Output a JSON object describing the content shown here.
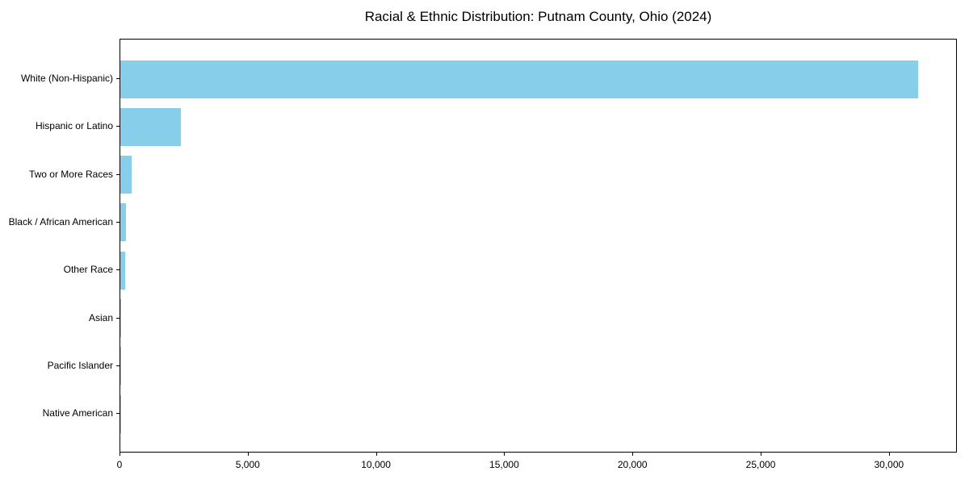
{
  "chart_data": {
    "type": "bar",
    "orientation": "horizontal",
    "title": "Racial & Ethnic Distribution: Putnam County, Ohio (2024)",
    "categories": [
      "White (Non-Hispanic)",
      "Hispanic or Latino",
      "Two or More Races",
      "Black / African American",
      "Other Race",
      "Asian",
      "Pacific Islander",
      "Native American"
    ],
    "values": [
      31100,
      2360,
      430,
      215,
      175,
      40,
      15,
      8
    ],
    "xlabel": "",
    "ylabel": "",
    "xlim": [
      0,
      32650
    ],
    "x_ticks": [
      0,
      5000,
      10000,
      15000,
      20000,
      25000,
      30000
    ],
    "x_tick_labels": [
      "0",
      "5,000",
      "10,000",
      "15,000",
      "20,000",
      "25,000",
      "30,000"
    ],
    "bar_color": "#87ceeb",
    "background_color": "#ffffff",
    "grid": false,
    "legend_position": "none"
  }
}
